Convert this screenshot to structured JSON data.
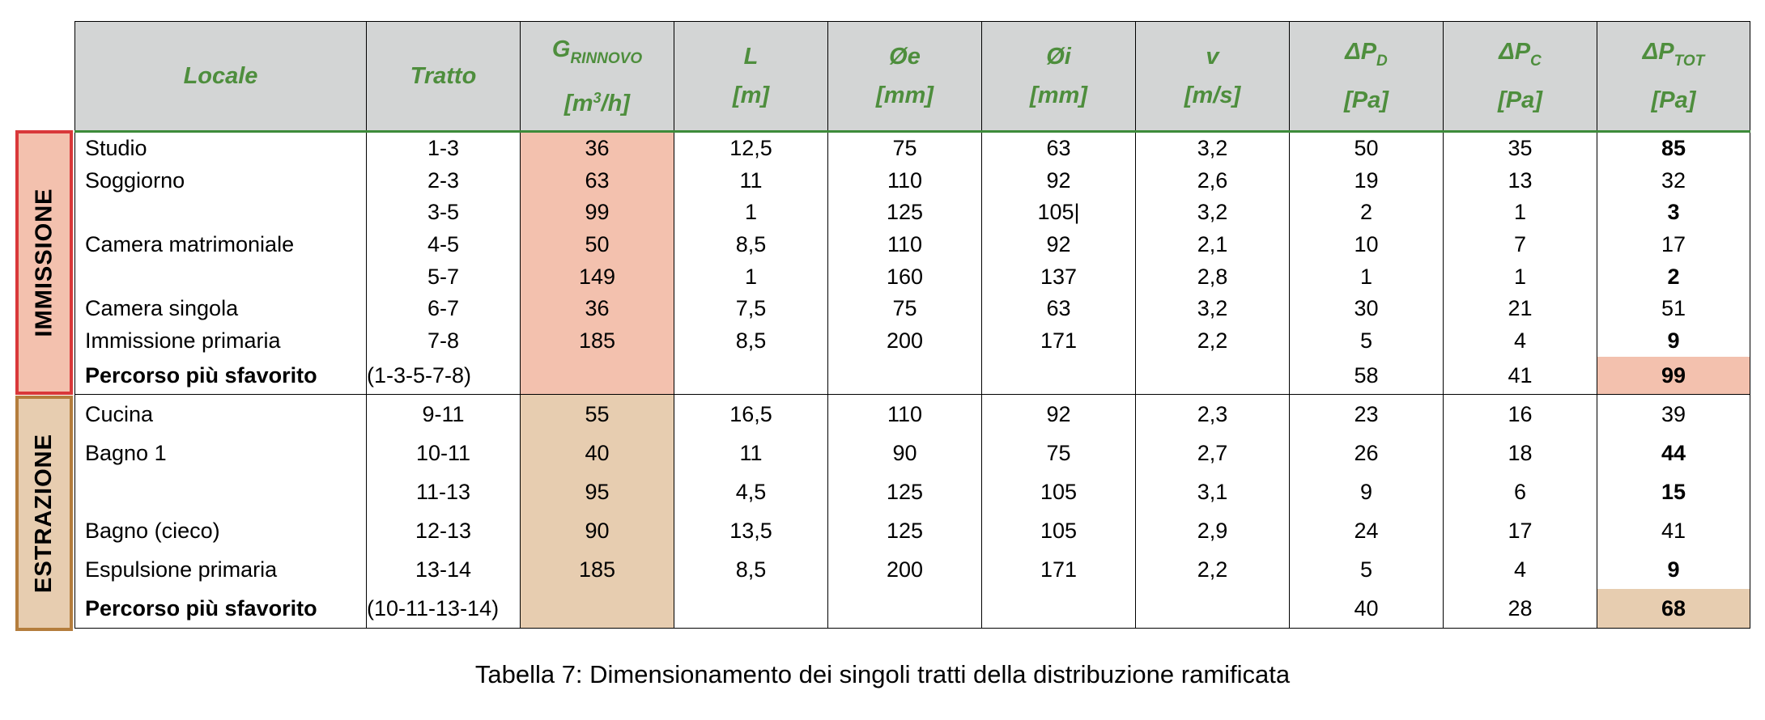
{
  "table": {
    "headers": {
      "locale": "Locale",
      "tratto": "Tratto",
      "g_main": "G",
      "g_sub": "RINNOVO",
      "g_unit_pre": "[m",
      "g_unit_sup": "3",
      "g_unit_post": "/h]",
      "l": "L",
      "l_unit": "[m]",
      "oe": "Øe",
      "oe_unit": "[mm]",
      "oi": "Øi",
      "oi_unit": "[mm]",
      "v": "v",
      "v_unit": "[m/s]",
      "dpd_main": "ΔP",
      "dpd_sub": "D",
      "dpd_unit": "[Pa]",
      "dpc_main": "ΔP",
      "dpc_sub": "C",
      "dpc_unit": "[Pa]",
      "dpt_main": "ΔP",
      "dpt_sub": "TOT",
      "dpt_unit": "[Pa]"
    },
    "sections": {
      "immissione": "IMMISSIONE",
      "estrazione": "ESTRAZIONE"
    },
    "immissione_rows": [
      {
        "locale": "Studio",
        "tratto": "1-3",
        "g": "36",
        "l": "12,5",
        "oe": "75",
        "oi": "63",
        "v": "3,2",
        "dpd": "50",
        "dpc": "35",
        "dpt": "85"
      },
      {
        "locale": "Soggiorno",
        "tratto": "2-3",
        "g": "63",
        "l": "11",
        "oe": "110",
        "oi": "92",
        "v": "2,6",
        "dpd": "19",
        "dpc": "13",
        "dpt": "32"
      },
      {
        "locale": "",
        "tratto": "3-5",
        "g": "99",
        "l": "1",
        "oe": "125",
        "oi": "105|",
        "v": "3,2",
        "dpd": "2",
        "dpc": "1",
        "dpt": "3"
      },
      {
        "locale": "Camera matrimoniale",
        "tratto": "4-5",
        "g": "50",
        "l": "8,5",
        "oe": "110",
        "oi": "92",
        "v": "2,1",
        "dpd": "10",
        "dpc": "7",
        "dpt": "17"
      },
      {
        "locale": "",
        "tratto": "5-7",
        "g": "149",
        "l": "1",
        "oe": "160",
        "oi": "137",
        "v": "2,8",
        "dpd": "1",
        "dpc": "1",
        "dpt": "2"
      },
      {
        "locale": "Camera singola",
        "tratto": "6-7",
        "g": "36",
        "l": "7,5",
        "oe": "75",
        "oi": "63",
        "v": "3,2",
        "dpd": "30",
        "dpc": "21",
        "dpt": "51"
      },
      {
        "locale": "Immissione primaria",
        "tratto": "7-8",
        "g": "185",
        "l": "8,5",
        "oe": "200",
        "oi": "171",
        "v": "2,2",
        "dpd": "5",
        "dpc": "4",
        "dpt": "9"
      }
    ],
    "immissione_total": {
      "locale": "Percorso più sfavorito",
      "tratto": "(1-3-5-7-8)",
      "dpd": "58",
      "dpc": "41",
      "dpt": "99"
    },
    "estrazione_rows": [
      {
        "locale": "Cucina",
        "tratto": "9-11",
        "g": "55",
        "l": "16,5",
        "oe": "110",
        "oi": "92",
        "v": "2,3",
        "dpd": "23",
        "dpc": "16",
        "dpt": "39"
      },
      {
        "locale": "Bagno 1",
        "tratto": "10-11",
        "g": "40",
        "l": "11",
        "oe": "90",
        "oi": "75",
        "v": "2,7",
        "dpd": "26",
        "dpc": "18",
        "dpt": "44"
      },
      {
        "locale": "",
        "tratto": "11-13",
        "g": "95",
        "l": "4,5",
        "oe": "125",
        "oi": "105",
        "v": "3,1",
        "dpd": "9",
        "dpc": "6",
        "dpt": "15"
      },
      {
        "locale": "Bagno (cieco)",
        "tratto": "12-13",
        "g": "90",
        "l": "13,5",
        "oe": "125",
        "oi": "105",
        "v": "2,9",
        "dpd": "24",
        "dpc": "17",
        "dpt": "41"
      },
      {
        "locale": "Espulsione primaria",
        "tratto": "13-14",
        "g": "185",
        "l": "8,5",
        "oe": "200",
        "oi": "171",
        "v": "2,2",
        "dpd": "5",
        "dpc": "4",
        "dpt": "9"
      }
    ],
    "estrazione_total": {
      "locale": "Percorso più sfavorito",
      "tratto": "(10-11-13-14)",
      "dpd": "40",
      "dpc": "28",
      "dpt": "68"
    }
  },
  "caption": "Tabella 7: Dimensionamento dei singoli tratti della distribuzione ramificata",
  "colors": {
    "header_bg": "#d3d5d5",
    "header_text": "#4e8e3d",
    "immissione_fill": "#f3c1ae",
    "immissione_border": "#d9383a",
    "estrazione_fill": "#e7cdb0",
    "estrazione_border": "#b47d3d"
  }
}
